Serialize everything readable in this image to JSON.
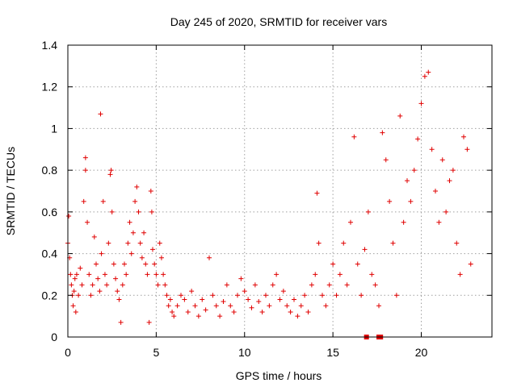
{
  "chart_data": {
    "type": "scatter",
    "title": "Day 245 of 2020, SRMTID for receiver vars",
    "xlabel": "GPS time / hours",
    "ylabel": "SRMTID / TECUs",
    "xlim": [
      0,
      24
    ],
    "ylim": [
      0,
      1.4
    ],
    "x_ticks": [
      "0",
      "5",
      "10",
      "15",
      "20"
    ],
    "y_ticks": [
      "0",
      "0.2",
      "0.4",
      "0.6",
      "0.8",
      "1",
      "1.2",
      "1.4"
    ],
    "grid": true,
    "marker": "+",
    "color": "#e00000",
    "series": [
      {
        "name": "SRMTID",
        "points": [
          [
            0.0,
            0.45
          ],
          [
            0.05,
            0.58
          ],
          [
            0.1,
            0.38
          ],
          [
            0.15,
            0.3
          ],
          [
            0.2,
            0.25
          ],
          [
            0.25,
            0.2
          ],
          [
            0.3,
            0.15
          ],
          [
            0.35,
            0.22
          ],
          [
            0.4,
            0.28
          ],
          [
            0.45,
            0.12
          ],
          [
            0.5,
            0.3
          ],
          [
            0.6,
            0.2
          ],
          [
            0.7,
            0.33
          ],
          [
            0.8,
            0.25
          ],
          [
            0.9,
            0.65
          ],
          [
            1.0,
            0.86
          ],
          [
            1.0,
            0.8
          ],
          [
            1.1,
            0.55
          ],
          [
            1.2,
            0.3
          ],
          [
            1.3,
            0.2
          ],
          [
            1.4,
            0.25
          ],
          [
            1.5,
            0.48
          ],
          [
            1.6,
            0.35
          ],
          [
            1.7,
            0.28
          ],
          [
            1.8,
            0.22
          ],
          [
            1.85,
            1.07
          ],
          [
            1.9,
            0.4
          ],
          [
            2.0,
            0.65
          ],
          [
            2.1,
            0.3
          ],
          [
            2.2,
            0.25
          ],
          [
            2.3,
            0.45
          ],
          [
            2.4,
            0.78
          ],
          [
            2.45,
            0.8
          ],
          [
            2.5,
            0.6
          ],
          [
            2.6,
            0.35
          ],
          [
            2.7,
            0.28
          ],
          [
            2.8,
            0.22
          ],
          [
            2.9,
            0.18
          ],
          [
            3.0,
            0.07
          ],
          [
            3.1,
            0.25
          ],
          [
            3.2,
            0.35
          ],
          [
            3.3,
            0.3
          ],
          [
            3.4,
            0.45
          ],
          [
            3.5,
            0.55
          ],
          [
            3.6,
            0.4
          ],
          [
            3.7,
            0.5
          ],
          [
            3.8,
            0.65
          ],
          [
            3.9,
            0.72
          ],
          [
            4.0,
            0.6
          ],
          [
            4.1,
            0.45
          ],
          [
            4.2,
            0.38
          ],
          [
            4.3,
            0.5
          ],
          [
            4.4,
            0.35
          ],
          [
            4.5,
            0.3
          ],
          [
            4.6,
            0.07
          ],
          [
            4.7,
            0.7
          ],
          [
            4.75,
            0.6
          ],
          [
            4.8,
            0.42
          ],
          [
            4.9,
            0.35
          ],
          [
            5.0,
            0.3
          ],
          [
            5.1,
            0.25
          ],
          [
            5.2,
            0.45
          ],
          [
            5.3,
            0.38
          ],
          [
            5.4,
            0.3
          ],
          [
            5.5,
            0.25
          ],
          [
            5.6,
            0.2
          ],
          [
            5.7,
            0.15
          ],
          [
            5.8,
            0.18
          ],
          [
            5.9,
            0.12
          ],
          [
            6.0,
            0.1
          ],
          [
            6.2,
            0.15
          ],
          [
            6.4,
            0.2
          ],
          [
            6.6,
            0.18
          ],
          [
            6.8,
            0.12
          ],
          [
            7.0,
            0.22
          ],
          [
            7.2,
            0.15
          ],
          [
            7.4,
            0.1
          ],
          [
            7.6,
            0.18
          ],
          [
            7.8,
            0.13
          ],
          [
            8.0,
            0.38
          ],
          [
            8.2,
            0.2
          ],
          [
            8.4,
            0.15
          ],
          [
            8.6,
            0.1
          ],
          [
            8.8,
            0.17
          ],
          [
            9.0,
            0.25
          ],
          [
            9.2,
            0.15
          ],
          [
            9.4,
            0.12
          ],
          [
            9.6,
            0.2
          ],
          [
            9.8,
            0.28
          ],
          [
            10.0,
            0.22
          ],
          [
            10.2,
            0.18
          ],
          [
            10.4,
            0.14
          ],
          [
            10.6,
            0.25
          ],
          [
            10.8,
            0.17
          ],
          [
            11.0,
            0.12
          ],
          [
            11.2,
            0.2
          ],
          [
            11.4,
            0.15
          ],
          [
            11.6,
            0.25
          ],
          [
            11.8,
            0.3
          ],
          [
            12.0,
            0.18
          ],
          [
            12.2,
            0.22
          ],
          [
            12.4,
            0.15
          ],
          [
            12.6,
            0.12
          ],
          [
            12.8,
            0.18
          ],
          [
            13.0,
            0.1
          ],
          [
            13.2,
            0.15
          ],
          [
            13.4,
            0.2
          ],
          [
            13.6,
            0.12
          ],
          [
            13.8,
            0.25
          ],
          [
            14.0,
            0.3
          ],
          [
            14.1,
            0.69
          ],
          [
            14.2,
            0.45
          ],
          [
            14.4,
            0.2
          ],
          [
            14.6,
            0.15
          ],
          [
            14.8,
            0.25
          ],
          [
            15.0,
            0.35
          ],
          [
            15.2,
            0.2
          ],
          [
            15.4,
            0.3
          ],
          [
            15.6,
            0.45
          ],
          [
            15.8,
            0.25
          ],
          [
            16.0,
            0.55
          ],
          [
            16.2,
            0.96
          ],
          [
            16.4,
            0.35
          ],
          [
            16.6,
            0.2
          ],
          [
            16.8,
            0.42
          ],
          [
            17.0,
            0.6
          ],
          [
            17.2,
            0.3
          ],
          [
            17.4,
            0.25
          ],
          [
            17.6,
            0.15
          ],
          [
            17.8,
            0.98
          ],
          [
            18.0,
            0.85
          ],
          [
            18.2,
            0.65
          ],
          [
            18.4,
            0.45
          ],
          [
            18.6,
            0.2
          ],
          [
            18.8,
            1.06
          ],
          [
            19.0,
            0.55
          ],
          [
            19.2,
            0.75
          ],
          [
            19.4,
            0.65
          ],
          [
            19.6,
            0.8
          ],
          [
            19.8,
            0.95
          ],
          [
            20.0,
            1.12
          ],
          [
            20.2,
            1.25
          ],
          [
            20.4,
            1.27
          ],
          [
            20.6,
            0.9
          ],
          [
            20.8,
            0.7
          ],
          [
            21.0,
            0.55
          ],
          [
            21.2,
            0.85
          ],
          [
            21.4,
            0.6
          ],
          [
            21.6,
            0.75
          ],
          [
            21.8,
            0.8
          ],
          [
            22.0,
            0.45
          ],
          [
            22.2,
            0.3
          ],
          [
            22.4,
            0.96
          ],
          [
            22.6,
            0.9
          ],
          [
            22.8,
            0.35
          ]
        ]
      }
    ],
    "zero_points": [
      [
        16.9,
        0
      ],
      [
        17.6,
        0
      ],
      [
        17.7,
        0
      ]
    ]
  }
}
